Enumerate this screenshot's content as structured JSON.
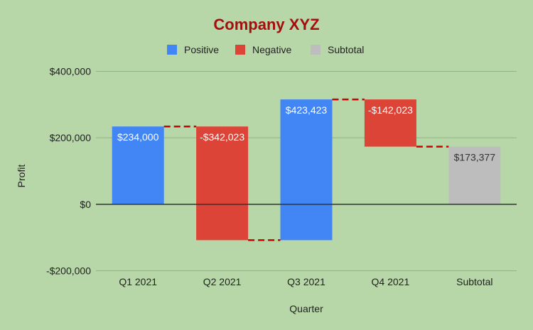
{
  "chart_data": {
    "type": "bar",
    "subtype": "waterfall",
    "title": "Company XYZ",
    "xlabel": "Quarter",
    "ylabel": "Profit",
    "categories": [
      "Q1 2021",
      "Q2 2021",
      "Q3 2021",
      "Q4 2021",
      "Subtotal"
    ],
    "values": [
      234000,
      -342023,
      423423,
      -142023,
      173377
    ],
    "kinds": [
      "positive",
      "negative",
      "positive",
      "negative",
      "subtotal"
    ],
    "data_labels": [
      "$234,000",
      "-$342,023",
      "$423,423",
      "-$142,023",
      "$173,377"
    ],
    "ylim": [
      -200000,
      400000
    ],
    "yticks": [
      400000,
      200000,
      0,
      -200000
    ],
    "ytick_labels": [
      "$400,000",
      "$200,000",
      "$0",
      "-$200,000"
    ],
    "grid": true,
    "legend_position": "top",
    "legend": [
      {
        "label": "Positive",
        "kind": "positive"
      },
      {
        "label": "Negative",
        "kind": "negative"
      },
      {
        "label": "Subtotal",
        "kind": "subtotal"
      }
    ],
    "colors": {
      "positive": "#4285f4",
      "negative": "#db4437",
      "subtotal": "#bdbdbd",
      "connector": "#cc0000",
      "title": "#a50e0e",
      "grid": "#8fb585",
      "zero_line": "#333333"
    }
  }
}
